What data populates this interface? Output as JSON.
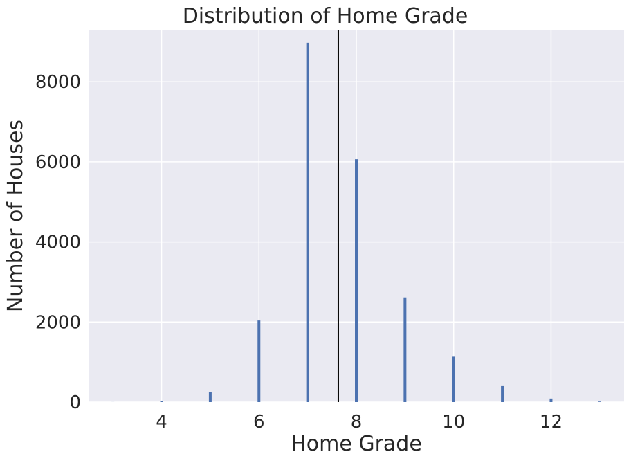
{
  "chart_data": {
    "type": "bar",
    "title": "Distribution of Home Grade",
    "xlabel": "Home Grade",
    "ylabel": "Number of Houses",
    "xlim": [
      2.5,
      13.5
    ],
    "ylim": [
      0,
      9300
    ],
    "xticks": [
      4,
      6,
      8,
      10,
      12
    ],
    "yticks": [
      0,
      2000,
      4000,
      6000,
      8000
    ],
    "grid": true,
    "bar_color": "#4c72b0",
    "background_color": "#eaeaf2",
    "grid_color": "#ffffff",
    "x": [
      3,
      4,
      5,
      6,
      7,
      8,
      9,
      10,
      11,
      12,
      13
    ],
    "values": [
      1,
      27,
      242,
      2038,
      8974,
      6065,
      2615,
      1134,
      399,
      89,
      13
    ],
    "mean_line": {
      "x": 7.63,
      "color": "#000000"
    }
  }
}
